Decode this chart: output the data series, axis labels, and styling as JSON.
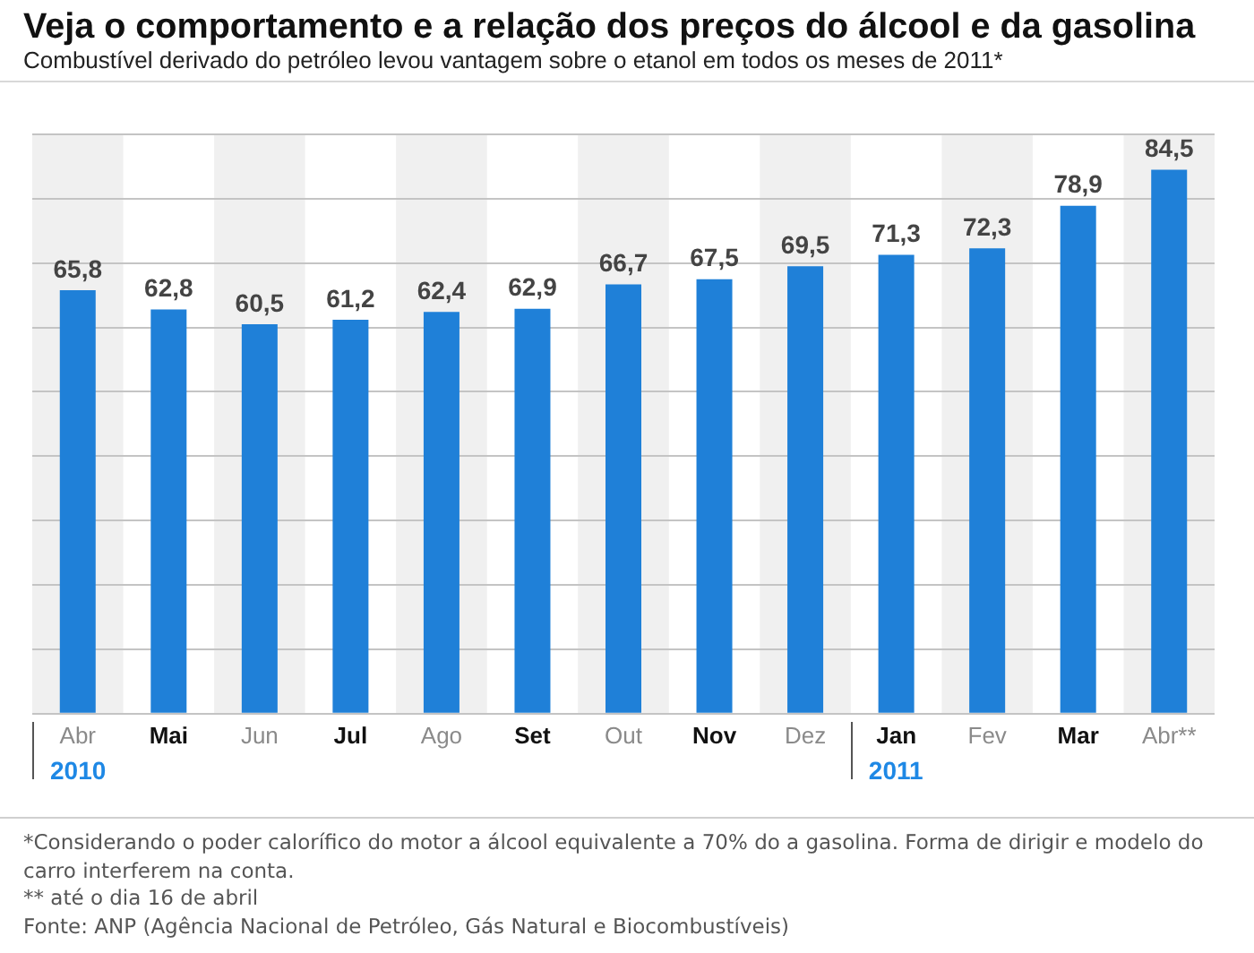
{
  "chart_data": {
    "type": "bar",
    "title": "Veja o comportamento e a relação dos preços do álcool e da gasolina",
    "subtitle": "Combustível derivado do petróleo levou vantagem sobre o etanol em todos os meses de 2011*",
    "categories": [
      "Abr",
      "Mai",
      "Jun",
      "Jul",
      "Ago",
      "Set",
      "Out",
      "Nov",
      "Dez",
      "Jan",
      "Fev",
      "Mar",
      "Abr**"
    ],
    "values": [
      65.8,
      62.8,
      60.5,
      61.2,
      62.4,
      62.9,
      66.7,
      67.5,
      69.5,
      71.3,
      72.3,
      78.9,
      84.5
    ],
    "value_labels": [
      "65,8",
      "62,8",
      "60,5",
      "61,2",
      "62,4",
      "62,9",
      "66,7",
      "67,5",
      "69,5",
      "71,3",
      "72,3",
      "78,9",
      "84,5"
    ],
    "color": "#1f80d8",
    "ylim": [
      0,
      90
    ],
    "yticks": [
      0,
      10,
      20,
      30,
      40,
      50,
      60,
      70,
      80,
      90
    ],
    "grid": "y",
    "tick_labels": "x",
    "bands": [
      {
        "axis": "x",
        "from": "Abr",
        "to": "Abr",
        "color": "#f0f0f0"
      },
      {
        "axis": "x",
        "from": "Jun",
        "to": "Jun",
        "color": "#f0f0f0"
      },
      {
        "axis": "x",
        "from": "Ago",
        "to": "Ago",
        "color": "#f0f0f0"
      },
      {
        "axis": "x",
        "from": "Out",
        "to": "Out",
        "color": "#f0f0f0"
      },
      {
        "axis": "x",
        "from": "Dez",
        "to": "Dez",
        "color": "#f0f0f0"
      },
      {
        "axis": "x",
        "from": "Fev",
        "to": "Fev",
        "color": "#f0f0f0"
      },
      {
        "axis": "x",
        "from": "Abr**",
        "to": "Abr**",
        "color": "#f0f0f0"
      }
    ],
    "annotations": [
      "2010",
      "2011",
      "*Considerando o poder calorífico do motor a álcool equivalente a 70% do a gasolina. Forma de dirigir e modelo do carro interferem na conta.",
      "** até o dia 16 de abril",
      "Fonte: ANP (Agência Nacional de Petróleo, Gás Natural e Biocombustíveis)"
    ]
  }
}
